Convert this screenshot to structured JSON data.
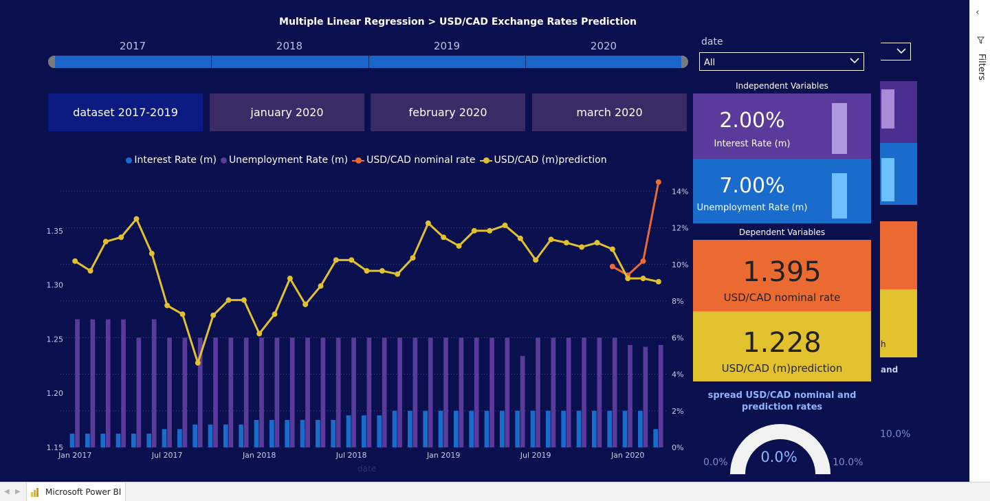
{
  "title": "Multiple Linear Regression > USD/CAD Exchange Rates Prediction",
  "year_slider": [
    "2017",
    "2018",
    "2019",
    "2020"
  ],
  "tabs": [
    {
      "label": "dataset 2017-2019",
      "active": true
    },
    {
      "label": "january 2020",
      "active": false
    },
    {
      "label": "february 2020",
      "active": false
    },
    {
      "label": "march 2020",
      "active": false
    }
  ],
  "date_slicer": {
    "label": "date",
    "value": "All"
  },
  "independent": {
    "section_label": "Independent Variables",
    "interest": {
      "value": "2.00%",
      "label": "Interest Rate (m)",
      "color": "#5a3a9a",
      "bar_color": "#b09ae0",
      "level": 0.55
    },
    "unemployment": {
      "value": "7.00%",
      "label": "Unemployment Rate (m)",
      "color": "#1a6ccc",
      "bar_color": "#6cc0ff",
      "level": 0.5
    }
  },
  "dependent": {
    "section_label": "Dependent Variables",
    "nominal": {
      "value": "1.395",
      "label": "USD/CAD nominal rate",
      "color": "#ea6a32"
    },
    "prediction": {
      "value": "1.228",
      "label": "USD/CAD (m)prediction",
      "color": "#e2c12e"
    }
  },
  "gauge": {
    "title": "spread USD/CAD nominal and prediction rates",
    "value": "0.0%",
    "min": "0.0%",
    "max": "10.0%"
  },
  "ghost": {
    "and_text": "and",
    "h_text": "h",
    "pct_text": "10.0%"
  },
  "filters_pane": {
    "label": "Filters"
  },
  "status_bar": {
    "app_label": "Microsoft Power BI"
  },
  "colors": {
    "background": "#0a0f4d",
    "interest": "#1a6ccc",
    "unemployment": "#5a3a9a",
    "nominal": "#ea6a32",
    "prediction": "#e2c12e"
  },
  "chart_data": {
    "type": "bar",
    "combo": "clustered column with two lines",
    "categories": [
      "Jan 2017",
      "Feb 2017",
      "Mar 2017",
      "Apr 2017",
      "May 2017",
      "Jun 2017",
      "Jul 2017",
      "Aug 2017",
      "Sep 2017",
      "Oct 2017",
      "Nov 2017",
      "Dec 2017",
      "Jan 2018",
      "Feb 2018",
      "Mar 2018",
      "Apr 2018",
      "May 2018",
      "Jun 2018",
      "Jul 2018",
      "Aug 2018",
      "Sep 2018",
      "Oct 2018",
      "Nov 2018",
      "Dec 2018",
      "Jan 2019",
      "Feb 2019",
      "Mar 2019",
      "Apr 2019",
      "May 2019",
      "Jun 2019",
      "Jul 2019",
      "Aug 2019",
      "Sep 2019",
      "Oct 2019",
      "Nov 2019",
      "Dec 2019",
      "Jan 2020",
      "Feb 2020",
      "Mar 2020"
    ],
    "x_tick_labels": [
      "Jan 2017",
      "Jul 2017",
      "Jan 2018",
      "Jul 2018",
      "Jan 2019",
      "Jul 2019",
      "Jan 2020"
    ],
    "xlabel": "date",
    "legend": [
      "Interest Rate (m)",
      "Unemployment Rate (m)",
      "USD/CAD nominal rate",
      "USD/CAD (m)prediction"
    ],
    "legend_position": "top",
    "grid": true,
    "y_left": {
      "ylim": [
        1.15,
        1.4
      ],
      "ticks": [
        "1.15",
        "1.20",
        "1.25",
        "1.30",
        "1.35"
      ],
      "tick_values": [
        1.15,
        1.2,
        1.25,
        1.3,
        1.35
      ]
    },
    "y_right": {
      "ylim": [
        0,
        14.8
      ],
      "ticks": [
        "0%",
        "2%",
        "4%",
        "6%",
        "8%",
        "10%",
        "12%",
        "14%"
      ],
      "tick_values": [
        0,
        2,
        4,
        6,
        8,
        10,
        12,
        14
      ]
    },
    "series": [
      {
        "name": "Interest Rate (m)",
        "axis": "right",
        "kind": "bar",
        "color": "#1a6ccc",
        "values": [
          0.75,
          0.75,
          0.75,
          0.75,
          0.75,
          0.75,
          1.0,
          1.0,
          1.25,
          1.25,
          1.25,
          1.25,
          1.5,
          1.5,
          1.5,
          1.5,
          1.5,
          1.5,
          1.75,
          1.75,
          1.75,
          2.0,
          2.0,
          2.0,
          2.0,
          2.0,
          2.0,
          2.0,
          2.0,
          2.0,
          2.0,
          2.0,
          2.0,
          2.0,
          2.0,
          2.0,
          2.0,
          2.0,
          1.0
        ]
      },
      {
        "name": "Unemployment Rate (m)",
        "axis": "right",
        "kind": "bar",
        "color": "#5a3a9a",
        "values": [
          7.0,
          7.0,
          7.0,
          7.0,
          6.0,
          7.0,
          6.0,
          6.0,
          6.0,
          6.0,
          6.0,
          6.0,
          6.0,
          6.0,
          6.0,
          6.0,
          6.0,
          6.0,
          6.0,
          6.0,
          6.0,
          6.0,
          6.0,
          6.0,
          6.0,
          6.0,
          6.0,
          6.0,
          6.0,
          5.0,
          6.0,
          6.0,
          6.0,
          6.0,
          6.0,
          6.0,
          5.6,
          5.5,
          5.6
        ]
      },
      {
        "name": "USD/CAD nominal rate",
        "axis": "left",
        "kind": "line",
        "color": "#ea6a32",
        "values": [
          null,
          null,
          null,
          null,
          null,
          null,
          null,
          null,
          null,
          null,
          null,
          null,
          null,
          null,
          null,
          null,
          null,
          null,
          null,
          null,
          null,
          null,
          null,
          null,
          null,
          null,
          null,
          null,
          null,
          null,
          null,
          null,
          null,
          null,
          null,
          1.317,
          1.309,
          1.322,
          1.395
        ]
      },
      {
        "name": "USD/CAD (m)prediction",
        "axis": "left",
        "kind": "line",
        "color": "#e2c12e",
        "values": [
          1.322,
          1.313,
          1.34,
          1.344,
          1.361,
          1.329,
          1.281,
          1.273,
          1.228,
          1.272,
          1.286,
          1.286,
          1.255,
          1.273,
          1.306,
          1.282,
          1.299,
          1.323,
          1.323,
          1.313,
          1.313,
          1.31,
          1.325,
          1.357,
          1.344,
          1.336,
          1.35,
          1.35,
          1.355,
          1.343,
          1.323,
          1.342,
          1.339,
          1.335,
          1.339,
          1.333,
          1.306,
          1.306,
          1.303
        ]
      }
    ]
  }
}
